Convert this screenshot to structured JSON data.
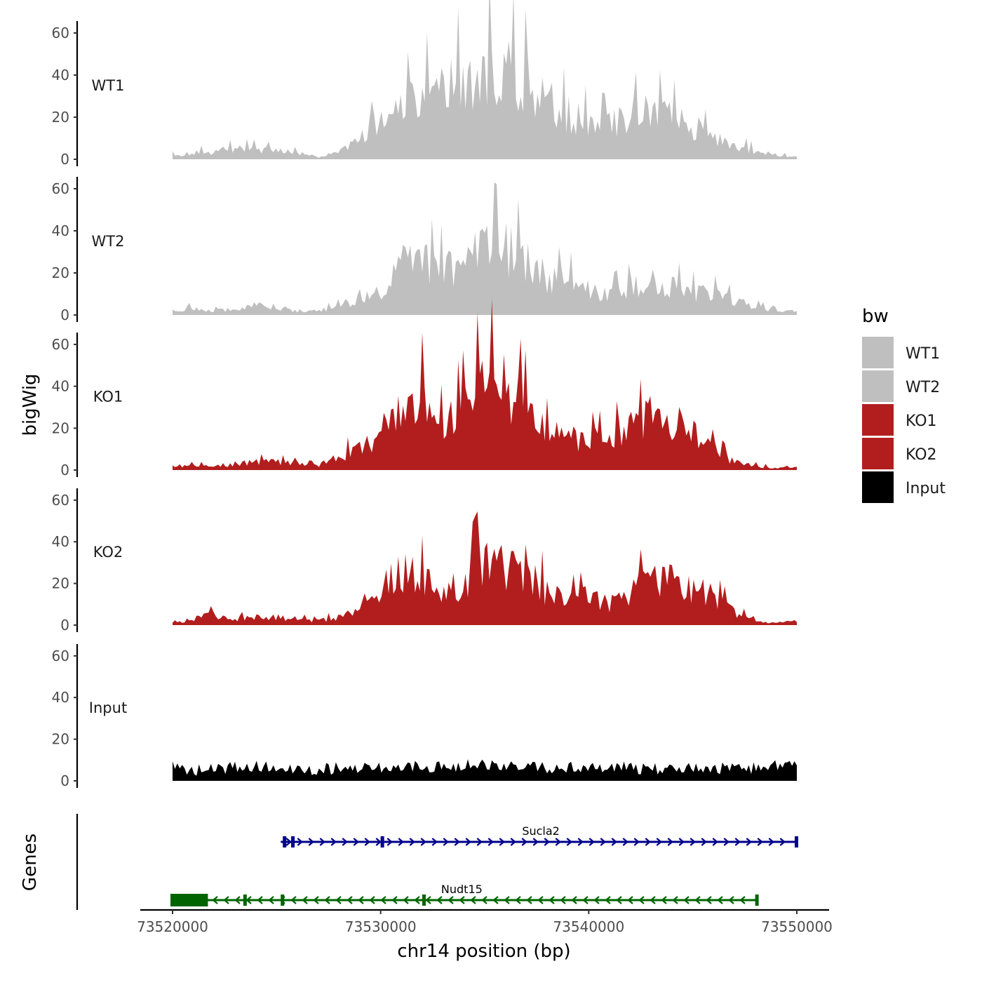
{
  "chart_data": {
    "type": "area",
    "chromosome_axis_label": "chr14 position (bp)",
    "ylabel": "bigWig",
    "genes_label": "Genes",
    "x_range": [
      73520000,
      73550000
    ],
    "x_ticks": [
      73520000,
      73530000,
      73540000,
      73550000
    ],
    "x_tick_labels": [
      "73520000",
      "73530000",
      "73540000",
      "73550000"
    ],
    "y_range": [
      0,
      65
    ],
    "y_ticks": [
      0,
      20,
      40,
      60
    ],
    "y_tick_labels": [
      "0",
      "20",
      "40",
      "60"
    ],
    "legend": {
      "title": "bw",
      "entries": [
        {
          "label": "WT1",
          "color": "#bfbfbf"
        },
        {
          "label": "WT2",
          "color": "#bfbfbf"
        },
        {
          "label": "KO1",
          "color": "#b21e1e"
        },
        {
          "label": "KO2",
          "color": "#b21e1e"
        },
        {
          "label": "Input",
          "color": "#000000"
        }
      ]
    },
    "series": [
      {
        "name": "WT1",
        "color": "#bfbfbf",
        "x": [
          73520000,
          73521000,
          73522000,
          73523000,
          73524000,
          73525000,
          73526000,
          73527000,
          73528000,
          73529000,
          73530000,
          73531000,
          73532000,
          73533000,
          73534000,
          73535000,
          73536000,
          73537000,
          73538000,
          73539000,
          73540000,
          73541000,
          73542000,
          73543000,
          73544000,
          73545000,
          73546000,
          73547000,
          73548000,
          73549000,
          73550000
        ],
        "values": [
          2,
          3,
          4,
          5,
          5,
          4,
          3,
          1,
          4,
          10,
          18,
          25,
          30,
          34,
          38,
          45,
          43,
          37,
          28,
          22,
          18,
          16,
          21,
          24,
          20,
          16,
          10,
          7,
          4,
          2,
          1
        ]
      },
      {
        "name": "WT2",
        "color": "#bfbfbf",
        "x": [
          73520000,
          73521000,
          73522000,
          73523000,
          73524000,
          73525000,
          73526000,
          73527000,
          73528000,
          73529000,
          73530000,
          73531000,
          73532000,
          73533000,
          73534000,
          73535000,
          73536000,
          73537000,
          73538000,
          73539000,
          73540000,
          73541000,
          73542000,
          73543000,
          73544000,
          73545000,
          73546000,
          73547000,
          73548000,
          73549000,
          73550000
        ],
        "values": [
          3,
          3,
          2,
          3,
          5,
          4,
          2,
          2,
          4,
          9,
          12,
          24,
          26,
          22,
          26,
          34,
          32,
          26,
          18,
          16,
          12,
          10,
          13,
          16,
          14,
          11,
          10,
          7,
          4,
          2,
          2
        ]
      },
      {
        "name": "KO1",
        "color": "#b21e1e",
        "x": [
          73520000,
          73521000,
          73522000,
          73523000,
          73524000,
          73525000,
          73526000,
          73527000,
          73528000,
          73529000,
          73530000,
          73531000,
          73532000,
          73533000,
          73534000,
          73535000,
          73536000,
          73537000,
          73538000,
          73539000,
          73540000,
          73541000,
          73542000,
          73543000,
          73544000,
          73545000,
          73546000,
          73547000,
          73548000,
          73549000,
          73550000
        ],
        "values": [
          2,
          2,
          2,
          3,
          4,
          4,
          3,
          2,
          7,
          10,
          18,
          30,
          34,
          20,
          30,
          44,
          40,
          30,
          18,
          16,
          14,
          16,
          20,
          26,
          24,
          18,
          10,
          4,
          2,
          1,
          2
        ]
      },
      {
        "name": "KO2",
        "color": "#b21e1e",
        "x": [
          73520000,
          73521000,
          73522000,
          73523000,
          73524000,
          73525000,
          73526000,
          73527000,
          73528000,
          73529000,
          73530000,
          73531000,
          73532000,
          73533000,
          73534000,
          73535000,
          73536000,
          73537000,
          73538000,
          73539000,
          73540000,
          73541000,
          73542000,
          73543000,
          73544000,
          73545000,
          73546000,
          73547000,
          73548000,
          73549000,
          73550000
        ],
        "values": [
          1,
          3,
          5,
          3,
          4,
          4,
          3,
          2,
          4,
          9,
          18,
          26,
          22,
          16,
          22,
          32,
          30,
          28,
          16,
          12,
          14,
          10,
          16,
          22,
          22,
          18,
          14,
          6,
          2,
          1,
          2
        ]
      },
      {
        "name": "Input",
        "color": "#000000",
        "x": [
          73520000,
          73521000,
          73522000,
          73523000,
          73524000,
          73525000,
          73526000,
          73527000,
          73528000,
          73529000,
          73530000,
          73531000,
          73532000,
          73533000,
          73534000,
          73535000,
          73536000,
          73537000,
          73538000,
          73539000,
          73540000,
          73541000,
          73542000,
          73543000,
          73544000,
          73545000,
          73546000,
          73547000,
          73548000,
          73549000,
          73550000
        ],
        "values": [
          7,
          5,
          5,
          6,
          7,
          6,
          5,
          5,
          6,
          6,
          6,
          7,
          7,
          6,
          7,
          8,
          7,
          6,
          6,
          6,
          6,
          6,
          6,
          5,
          6,
          6,
          6,
          6,
          6,
          7,
          7
        ]
      }
    ],
    "genes": [
      {
        "name": "Sucla2",
        "color": "#00008b",
        "strand": "+",
        "start": 73525200,
        "end": 73550000,
        "exons": [
          73525400,
          73525800,
          73530100,
          73550000
        ]
      },
      {
        "name": "Nudt15",
        "color": "#006400",
        "strand": "-",
        "start": 73520000,
        "end": 73548100,
        "exons": [
          73523500,
          73525300,
          73532100,
          73548100
        ],
        "utr_block": [
          73520000,
          73521700
        ]
      }
    ]
  }
}
